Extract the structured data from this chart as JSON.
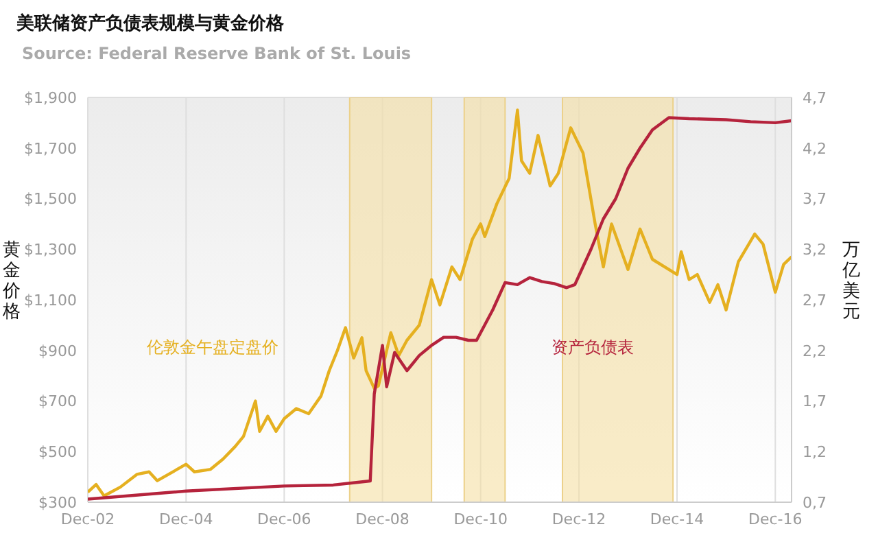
{
  "chart_data": {
    "type": "line",
    "title": "美联储资产负债表规模与黄金价格",
    "annotations": [
      "Source: Federal Reserve Bank of St. Louis"
    ],
    "ylabel": "黄金价格",
    "y2label": "万亿美元",
    "legend": false,
    "grid": true,
    "marker": "none",
    "line_style": "solid",
    "xlim": [
      "2002-12",
      "2017-04"
    ],
    "xticks": [
      {
        "value": "2002-12",
        "label": "Dec-02"
      },
      {
        "value": "2004-12",
        "label": "Dec-04"
      },
      {
        "value": "2006-12",
        "label": "Dec-06"
      },
      {
        "value": "2008-12",
        "label": "Dec-08"
      },
      {
        "value": "2010-12",
        "label": "Dec-10"
      },
      {
        "value": "2012-12",
        "label": "Dec-12"
      },
      {
        "value": "2014-12",
        "label": "Dec-14"
      },
      {
        "value": "2016-12",
        "label": "Dec-16"
      }
    ],
    "ylim": [
      300,
      1900
    ],
    "yticks": [
      {
        "value": 300,
        "label": "$300"
      },
      {
        "value": 500,
        "label": "$500"
      },
      {
        "value": 700,
        "label": "$700"
      },
      {
        "value": 900,
        "label": "$900"
      },
      {
        "value": 1100,
        "label": "$1,100"
      },
      {
        "value": 1300,
        "label": "$1,300"
      },
      {
        "value": 1500,
        "label": "$1,500"
      },
      {
        "value": 1700,
        "label": "$1,700"
      },
      {
        "value": 1900,
        "label": "$1,900"
      }
    ],
    "y2lim": [
      0.7,
      4.7
    ],
    "y2ticks": [
      {
        "value": 0.7,
        "label": "0,7"
      },
      {
        "value": 1.2,
        "label": "1,2"
      },
      {
        "value": 1.7,
        "label": "1,7"
      },
      {
        "value": 2.2,
        "label": "2,2"
      },
      {
        "value": 2.7,
        "label": "2,7"
      },
      {
        "value": 3.2,
        "label": "3,2"
      },
      {
        "value": 3.7,
        "label": "3,7"
      },
      {
        "value": 4.2,
        "label": "4,2"
      },
      {
        "value": 4.7,
        "label": "4,7"
      }
    ],
    "bands": [
      {
        "axis": "x",
        "from": "2008-04",
        "to": "2009-12",
        "color": "#f5dfa3"
      },
      {
        "axis": "x",
        "from": "2010-08",
        "to": "2011-06",
        "color": "#f5dfa3"
      },
      {
        "axis": "x",
        "from": "2012-08",
        "to": "2014-11",
        "color": "#f5dfa3"
      }
    ],
    "series": [
      {
        "name": "伦敦金午盘定盘价",
        "color": "#e5b020",
        "x": [
          "2002-12",
          "2003-02",
          "2003-04",
          "2003-08",
          "2003-12",
          "2004-03",
          "2004-05",
          "2004-12",
          "2005-02",
          "2005-06",
          "2005-09",
          "2005-12",
          "2006-02",
          "2006-05",
          "2006-06",
          "2006-08",
          "2006-10",
          "2006-12",
          "2007-03",
          "2007-06",
          "2007-09",
          "2007-11",
          "2008-01",
          "2008-03",
          "2008-05",
          "2008-07",
          "2008-08",
          "2008-10",
          "2008-11",
          "2009-02",
          "2009-04",
          "2009-06",
          "2009-09",
          "2009-12",
          "2010-02",
          "2010-05",
          "2010-07",
          "2010-10",
          "2010-12",
          "2011-01",
          "2011-04",
          "2011-07",
          "2011-09",
          "2011-10",
          "2011-12",
          "2012-02",
          "2012-05",
          "2012-07",
          "2012-10",
          "2013-01",
          "2013-04",
          "2013-06",
          "2013-08",
          "2013-12",
          "2014-03",
          "2014-06",
          "2014-09",
          "2014-12",
          "2015-01",
          "2015-03",
          "2015-05",
          "2015-08",
          "2015-10",
          "2015-12",
          "2016-03",
          "2016-07",
          "2016-09",
          "2016-12",
          "2017-02",
          "2017-04"
        ],
        "values": [
          340,
          370,
          325,
          360,
          410,
          420,
          385,
          450,
          420,
          430,
          470,
          520,
          560,
          700,
          580,
          640,
          580,
          630,
          670,
          650,
          720,
          820,
          900,
          990,
          870,
          950,
          820,
          750,
          760,
          970,
          880,
          940,
          1000,
          1180,
          1080,
          1230,
          1180,
          1340,
          1400,
          1350,
          1480,
          1580,
          1850,
          1650,
          1600,
          1750,
          1550,
          1600,
          1780,
          1680,
          1400,
          1230,
          1400,
          1220,
          1380,
          1260,
          1230,
          1200,
          1290,
          1180,
          1200,
          1090,
          1160,
          1060,
          1250,
          1360,
          1320,
          1130,
          1240,
          1270
        ]
      },
      {
        "name": "资产负债表",
        "color": "#b5233c",
        "axis": "y2",
        "x": [
          "2002-12",
          "2004-12",
          "2006-12",
          "2007-12",
          "2008-09",
          "2008-10",
          "2008-12",
          "2009-01",
          "2009-03",
          "2009-06",
          "2009-09",
          "2009-12",
          "2010-03",
          "2010-06",
          "2010-09",
          "2010-11",
          "2011-03",
          "2011-06",
          "2011-09",
          "2011-12",
          "2012-03",
          "2012-06",
          "2012-09",
          "2012-11",
          "2013-03",
          "2013-06",
          "2013-09",
          "2013-12",
          "2014-03",
          "2014-06",
          "2014-10",
          "2015-03",
          "2015-12",
          "2016-06",
          "2016-12",
          "2017-04"
        ],
        "values": [
          0.73,
          0.81,
          0.86,
          0.87,
          0.91,
          1.77,
          2.25,
          1.84,
          2.18,
          2.0,
          2.15,
          2.25,
          2.33,
          2.33,
          2.3,
          2.3,
          2.6,
          2.87,
          2.85,
          2.92,
          2.88,
          2.86,
          2.82,
          2.85,
          3.2,
          3.5,
          3.7,
          4.0,
          4.2,
          4.38,
          4.5,
          4.49,
          4.48,
          4.46,
          4.45,
          4.47
        ]
      }
    ]
  }
}
